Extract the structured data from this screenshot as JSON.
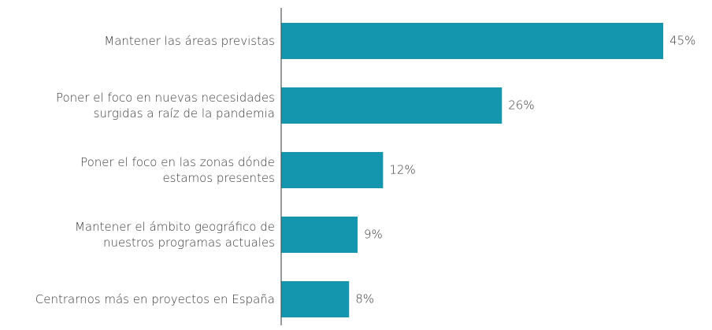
{
  "chart_data": {
    "type": "bar",
    "orientation": "horizontal",
    "categories": [
      "Mantener las áreas previstas",
      "Poner el foco en nuevas necesidades\nsurgidas a raíz de la pandemia",
      "Poner el foco en las zonas dónde\nestamos presentes",
      "Mantener el ámbito geográfico de\nnuestros programas actuales",
      "Centrarnos más en proyectos en España"
    ],
    "values": [
      45,
      26,
      12,
      9,
      8
    ],
    "value_labels": [
      "45%",
      "26%",
      "12%",
      "9%",
      "8%"
    ],
    "color": "#1497ae"
  }
}
